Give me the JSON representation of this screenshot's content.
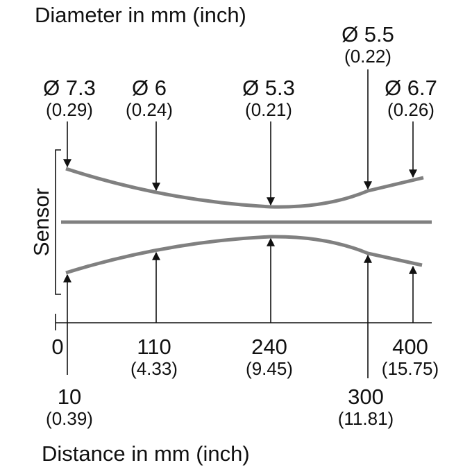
{
  "title": "Diameter in mm (inch)",
  "sensor_label": "Sensor",
  "diameters": [
    {
      "mm": "Ø 7.3",
      "inch": "(0.29)"
    },
    {
      "mm": "Ø 6",
      "inch": "(0.24)"
    },
    {
      "mm": "Ø 5.3",
      "inch": "(0.21)"
    },
    {
      "mm": "Ø 5.5",
      "inch": "(0.22)"
    },
    {
      "mm": "Ø 6.7",
      "inch": "(0.26)"
    }
  ],
  "distances": [
    {
      "mm": "0"
    },
    {
      "mm": "10",
      "inch": "(0.39)"
    },
    {
      "mm": "110",
      "inch": "(4.33)"
    },
    {
      "mm": "240",
      "inch": "(9.45)"
    },
    {
      "mm": "300",
      "inch": "(11.81)"
    },
    {
      "mm": "400",
      "inch": "(15.75)"
    }
  ],
  "x_axis_title": "Distance in mm (inch)"
}
